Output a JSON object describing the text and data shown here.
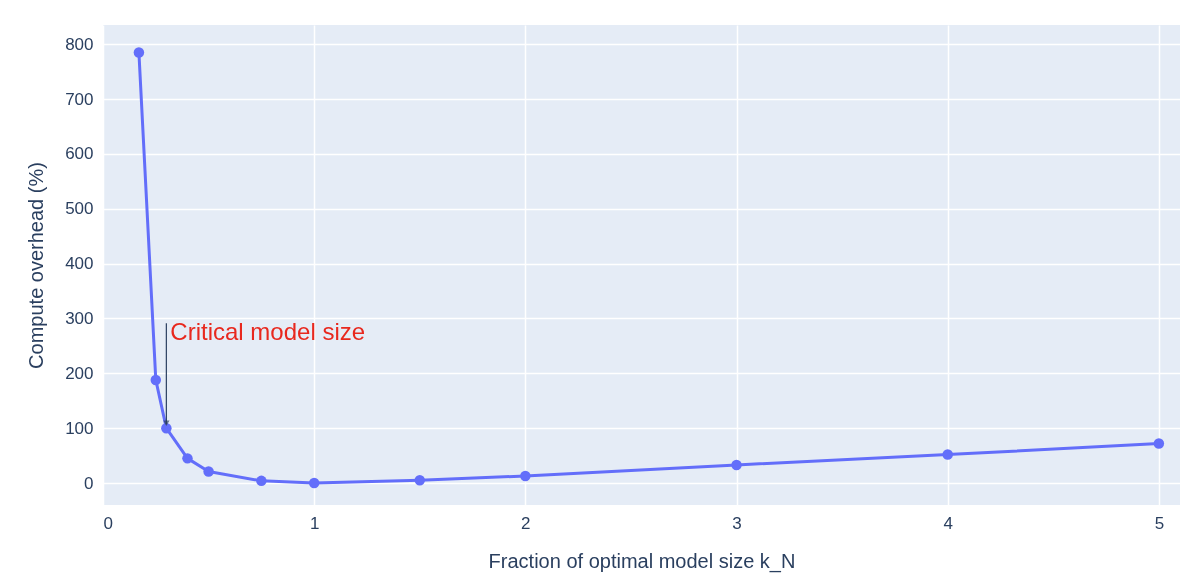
{
  "chart_data": {
    "type": "line",
    "xlabel": "Fraction of optimal model size k_N",
    "ylabel": "Compute overhead (%)",
    "x": [
      0.17,
      0.25,
      0.3,
      0.4,
      0.5,
      0.75,
      1,
      1.5,
      2,
      3,
      4,
      5
    ],
    "series": [
      {
        "color": "#636efa",
        "values": [
          785,
          188,
          100,
          45,
          21,
          4,
          0,
          5,
          13,
          33,
          52,
          72
        ]
      }
    ],
    "xlim": [
      0,
      5.1
    ],
    "xticks": [
      0,
      1,
      2,
      3,
      4,
      5
    ],
    "ylim": [
      -40,
      835
    ],
    "yticks": [
      0,
      100,
      200,
      300,
      400,
      500,
      600,
      700,
      800
    ],
    "grid": true,
    "marker": "circle",
    "line_style": "solid",
    "annotations": [
      {
        "text": "Critical model size",
        "x": 0.3,
        "y": 100
      }
    ]
  }
}
